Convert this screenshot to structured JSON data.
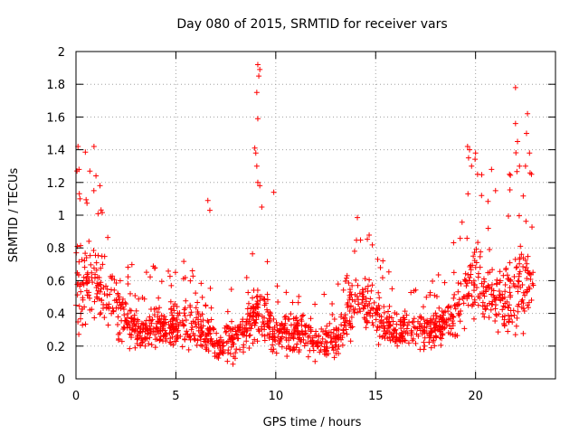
{
  "chart_data": {
    "type": "scatter",
    "title": "Day 080 of 2015, SRMTID for receiver vars",
    "xlabel": "GPS time / hours",
    "ylabel": "SRMTID / TECUs",
    "xlim": [
      0,
      24
    ],
    "ylim": [
      0,
      2
    ],
    "xticks": [
      0,
      5,
      10,
      15,
      20
    ],
    "yticks": [
      0,
      0.2,
      0.4,
      0.6,
      0.8,
      1,
      1.2,
      1.4,
      1.6,
      1.8,
      2
    ],
    "xtick_labels": [
      "0",
      "5",
      "10",
      "15",
      "20"
    ],
    "ytick_labels": [
      "0",
      "0.2",
      "0.4",
      "0.6",
      "0.8",
      "1",
      "1.2",
      "1.4",
      "1.6",
      "1.8",
      "2"
    ],
    "grid": true,
    "marker": "+",
    "color": "#ff0000",
    "x_end": 22.9,
    "series_profile": [
      {
        "x": 0.0,
        "mean": 0.55,
        "spread": 0.35
      },
      {
        "x": 1.0,
        "mean": 0.6,
        "spread": 0.3
      },
      {
        "x": 2.0,
        "mean": 0.45,
        "spread": 0.2
      },
      {
        "x": 3.0,
        "mean": 0.28,
        "spread": 0.14
      },
      {
        "x": 4.0,
        "mean": 0.33,
        "spread": 0.16
      },
      {
        "x": 5.0,
        "mean": 0.33,
        "spread": 0.16
      },
      {
        "x": 6.0,
        "mean": 0.32,
        "spread": 0.15
      },
      {
        "x": 7.0,
        "mean": 0.22,
        "spread": 0.12
      },
      {
        "x": 8.0,
        "mean": 0.25,
        "spread": 0.13
      },
      {
        "x": 9.0,
        "mean": 0.42,
        "spread": 0.2
      },
      {
        "x": 10.0,
        "mean": 0.3,
        "spread": 0.14
      },
      {
        "x": 11.0,
        "mean": 0.28,
        "spread": 0.13
      },
      {
        "x": 12.0,
        "mean": 0.24,
        "spread": 0.12
      },
      {
        "x": 13.0,
        "mean": 0.22,
        "spread": 0.12
      },
      {
        "x": 14.0,
        "mean": 0.5,
        "spread": 0.2
      },
      {
        "x": 15.0,
        "mean": 0.4,
        "spread": 0.16
      },
      {
        "x": 16.0,
        "mean": 0.3,
        "spread": 0.14
      },
      {
        "x": 17.0,
        "mean": 0.3,
        "spread": 0.14
      },
      {
        "x": 18.0,
        "mean": 0.3,
        "spread": 0.14
      },
      {
        "x": 19.0,
        "mean": 0.4,
        "spread": 0.18
      },
      {
        "x": 20.0,
        "mean": 0.65,
        "spread": 0.3
      },
      {
        "x": 21.0,
        "mean": 0.45,
        "spread": 0.2
      },
      {
        "x": 22.0,
        "mean": 0.55,
        "spread": 0.35
      },
      {
        "x": 22.9,
        "mean": 0.5,
        "spread": 0.3
      }
    ],
    "outliers": [
      {
        "x": 0.1,
        "y": 1.42
      },
      {
        "x": 0.15,
        "y": 1.28
      },
      {
        "x": 0.05,
        "y": 1.27
      },
      {
        "x": 0.2,
        "y": 1.1
      },
      {
        "x": 0.9,
        "y": 1.42
      },
      {
        "x": 1.0,
        "y": 1.24
      },
      {
        "x": 1.2,
        "y": 1.18
      },
      {
        "x": 6.6,
        "y": 1.09
      },
      {
        "x": 6.7,
        "y": 1.03
      },
      {
        "x": 9.1,
        "y": 1.92
      },
      {
        "x": 9.2,
        "y": 1.89
      },
      {
        "x": 9.15,
        "y": 1.85
      },
      {
        "x": 9.05,
        "y": 1.75
      },
      {
        "x": 9.1,
        "y": 1.59
      },
      {
        "x": 8.95,
        "y": 1.41
      },
      {
        "x": 9.0,
        "y": 1.38
      },
      {
        "x": 9.05,
        "y": 1.3
      },
      {
        "x": 9.1,
        "y": 1.2
      },
      {
        "x": 9.2,
        "y": 1.18
      },
      {
        "x": 9.3,
        "y": 1.05
      },
      {
        "x": 9.9,
        "y": 1.14
      },
      {
        "x": 19.6,
        "y": 1.42
      },
      {
        "x": 19.7,
        "y": 1.4
      },
      {
        "x": 19.65,
        "y": 1.35
      },
      {
        "x": 19.8,
        "y": 1.3
      },
      {
        "x": 20.0,
        "y": 1.38
      },
      {
        "x": 20.1,
        "y": 1.25
      },
      {
        "x": 20.3,
        "y": 1.12
      },
      {
        "x": 20.8,
        "y": 1.28
      },
      {
        "x": 21.0,
        "y": 1.15
      },
      {
        "x": 21.7,
        "y": 1.25
      },
      {
        "x": 22.0,
        "y": 1.78
      },
      {
        "x": 22.0,
        "y": 1.56
      },
      {
        "x": 22.1,
        "y": 1.45
      },
      {
        "x": 22.2,
        "y": 1.3
      },
      {
        "x": 22.6,
        "y": 1.62
      },
      {
        "x": 22.55,
        "y": 1.5
      },
      {
        "x": 22.7,
        "y": 1.38
      },
      {
        "x": 22.5,
        "y": 1.3
      },
      {
        "x": 22.8,
        "y": 1.25
      }
    ]
  }
}
